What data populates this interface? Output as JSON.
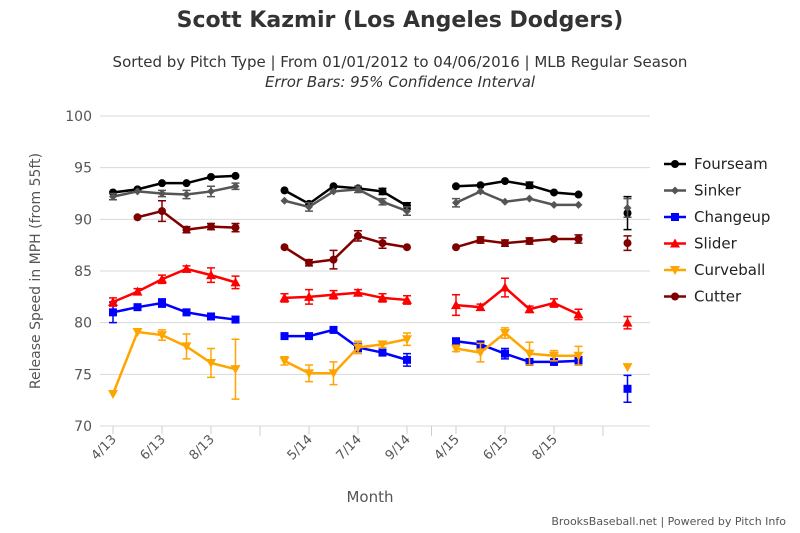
{
  "chart_data": {
    "type": "line",
    "title": "Scott Kazmir (Los Angeles Dodgers)",
    "subtitle": "Sorted by Pitch Type | From 01/01/2012 to 04/06/2016 | MLB Regular Season",
    "subtitle2": "Error Bars: 95% Confidence Interval",
    "xlabel": "Month",
    "ylabel": "Release Speed in MPH (from 55ft)",
    "ylim": [
      70,
      100
    ],
    "yticks": [
      70,
      75,
      80,
      85,
      90,
      95,
      100
    ],
    "x": [
      "2013-04",
      "2013-05",
      "2013-06",
      "2013-07",
      "2013-08",
      "2013-09",
      "2014-04",
      "2014-05",
      "2014-06",
      "2014-07",
      "2014-08",
      "2014-09",
      "2015-04",
      "2015-05",
      "2015-06",
      "2015-07",
      "2015-08",
      "2015-09",
      "2016-04"
    ],
    "xticks": [
      {
        "label": "4/13",
        "i": 0
      },
      {
        "label": "6/13",
        "i": 2
      },
      {
        "label": "8/13",
        "i": 4
      },
      {
        "label": "5/14",
        "i": 7
      },
      {
        "label": "7/14",
        "i": 9
      },
      {
        "label": "9/14",
        "i": 11
      },
      {
        "label": "4/15",
        "i": 12
      },
      {
        "label": "6/15",
        "i": 14
      },
      {
        "label": "8/15",
        "i": 16
      }
    ],
    "legend_position": "right",
    "series": [
      {
        "name": "Fourseam",
        "color": "#000000",
        "marker": "circle",
        "values": [
          92.6,
          92.9,
          93.5,
          93.5,
          94.1,
          94.2,
          92.8,
          91.5,
          93.2,
          93.0,
          92.7,
          91.3,
          93.2,
          93.3,
          93.7,
          93.3,
          92.6,
          92.4,
          90.6
        ],
        "err": [
          0.2,
          0.2,
          0.2,
          0.2,
          0.2,
          0.2,
          0.2,
          0.2,
          0.2,
          0.2,
          0.3,
          0.3,
          0.2,
          0.2,
          0.2,
          0.3,
          0.2,
          0.2,
          1.6
        ]
      },
      {
        "name": "Sinker",
        "color": "#555555",
        "marker": "diamond",
        "values": [
          92.2,
          92.7,
          92.5,
          92.4,
          92.7,
          93.2,
          91.8,
          91.2,
          92.7,
          92.9,
          91.7,
          90.8,
          91.6,
          92.7,
          91.7,
          92.0,
          91.4,
          91.4,
          91.1
        ],
        "err": [
          0.3,
          0.2,
          0.3,
          0.4,
          0.5,
          0.3,
          0.2,
          0.4,
          0.2,
          0.3,
          0.3,
          0.4,
          0.4,
          0.2,
          0.2,
          0.2,
          0.2,
          0.2,
          0.9
        ]
      },
      {
        "name": "Changeup",
        "color": "#0000ff",
        "marker": "square",
        "values": [
          81.0,
          81.5,
          81.9,
          81.0,
          80.6,
          80.3,
          78.7,
          78.7,
          79.3,
          77.6,
          77.1,
          76.4,
          78.2,
          77.9,
          77.0,
          76.2,
          76.2,
          76.3,
          73.6
        ],
        "err": [
          1.0,
          0.2,
          0.4,
          0.3,
          0.2,
          0.2,
          0.2,
          0.2,
          0.2,
          0.4,
          0.3,
          0.6,
          0.3,
          0.3,
          0.5,
          0.2,
          0.2,
          0.4,
          1.3
        ]
      },
      {
        "name": "Slider",
        "color": "#ff0000",
        "marker": "triangle",
        "values": [
          82.0,
          83.0,
          84.2,
          85.2,
          84.6,
          83.9,
          82.4,
          82.5,
          82.7,
          82.9,
          82.4,
          82.2,
          81.7,
          81.5,
          83.4,
          81.3,
          81.9,
          80.8,
          80.0
        ],
        "err": [
          0.4,
          0.3,
          0.4,
          0.3,
          0.7,
          0.6,
          0.4,
          0.7,
          0.4,
          0.3,
          0.4,
          0.4,
          1.0,
          0.3,
          0.9,
          0.3,
          0.4,
          0.5,
          0.6
        ]
      },
      {
        "name": "Curveball",
        "color": "#ffa500",
        "marker": "triangle-down",
        "values": [
          73.1,
          79.1,
          78.8,
          77.7,
          76.1,
          75.5,
          76.3,
          75.1,
          75.1,
          77.6,
          77.9,
          78.4,
          77.5,
          77.1,
          79.0,
          77.0,
          76.8,
          76.8,
          75.7
        ],
        "err": [
          0.2,
          0.2,
          0.5,
          1.2,
          1.4,
          2.9,
          0.4,
          0.8,
          1.1,
          0.6,
          0.3,
          0.6,
          0.3,
          0.9,
          0.5,
          1.1,
          0.5,
          0.9,
          0.2
        ]
      },
      {
        "name": "Cutter",
        "color": "#800000",
        "marker": "circle",
        "values": [
          null,
          90.2,
          90.8,
          89.0,
          89.3,
          89.2,
          87.3,
          85.8,
          86.1,
          88.4,
          87.7,
          87.3,
          87.3,
          88.0,
          87.7,
          87.9,
          88.1,
          88.1,
          87.7
        ],
        "err": [
          0,
          0.2,
          1.0,
          0.3,
          0.3,
          0.4,
          0.2,
          0.3,
          0.9,
          0.5,
          0.5,
          0.2,
          0.2,
          0.3,
          0.3,
          0.3,
          0.2,
          0.4,
          0.7
        ]
      }
    ]
  },
  "credit": "BrooksBaseball.net | Powered by Pitch Info"
}
